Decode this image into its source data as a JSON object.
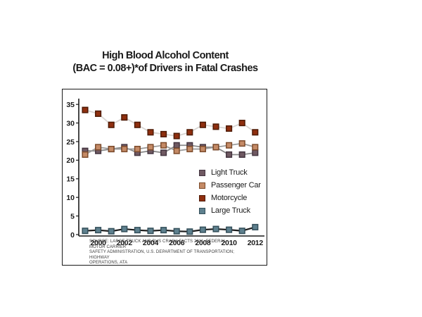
{
  "title": {
    "line1": "High Blood Alcohol Content",
    "line2": "(BAC = 0.08+)*of Drivers in Fatal Crashes"
  },
  "source": {
    "line1": "SOURCE: LARGE TRUCK AND BUS CRASH FACTS 2011, FEDERAL MOTOR CARRIER",
    "line2": "SAFETY ADMINISTRATION, U.S. DEPARTMENT OF TRANSPORTATION; HIGHWAY",
    "line3": "OPERATIONS, ATA"
  },
  "legend": {
    "items": [
      {
        "label": "Light Truck"
      },
      {
        "label": "Passenger Car"
      },
      {
        "label": "Motorcycle"
      },
      {
        "label": "Large Truck"
      }
    ]
  },
  "chart_data": {
    "type": "line",
    "title": "High Blood Alcohol Content (BAC = 0.08+)*of Drivers in Fatal Crashes",
    "x": [
      1999,
      2000,
      2001,
      2002,
      2003,
      2004,
      2005,
      2006,
      2007,
      2008,
      2009,
      2010,
      2011,
      2012
    ],
    "x_tick_labels": [
      "2000",
      "2002",
      "2004",
      "2006",
      "2008",
      "2010",
      "2012"
    ],
    "y_ticks": [
      0,
      5,
      10,
      15,
      20,
      25,
      30,
      35
    ],
    "ylim": [
      0,
      35
    ],
    "grid": false,
    "legend_position": "inside-right",
    "series": [
      {
        "name": "Light Truck",
        "marker_color": "#6f5962",
        "marker_border": "#443540",
        "line_color": "#8a8a8a",
        "line_width": 1.8,
        "values": [
          22.5,
          22.5,
          23.0,
          23.5,
          22.0,
          22.5,
          22.0,
          24.0,
          24.0,
          23.5,
          23.5,
          21.5,
          21.5,
          22.0
        ]
      },
      {
        "name": "Passenger Car",
        "marker_color": "#c48a66",
        "marker_border": "#7c4b2b",
        "line_color": "#9c9c9c",
        "line_width": 1.8,
        "values": [
          21.5,
          23.5,
          23.0,
          23.0,
          23.0,
          23.5,
          24.0,
          22.5,
          23.0,
          23.0,
          23.5,
          24.0,
          24.5,
          23.5
        ]
      },
      {
        "name": "Motorcycle",
        "marker_color": "#8f2f0f",
        "marker_border": "#4e1a05",
        "line_color": "#d8d5d2",
        "line_width": 1.8,
        "values": [
          33.5,
          32.5,
          29.5,
          31.5,
          29.5,
          27.5,
          27.0,
          26.5,
          27.5,
          29.5,
          29.0,
          28.5,
          30.0,
          27.5
        ]
      },
      {
        "name": "Large Truck",
        "marker_color": "#5e808e",
        "marker_border": "#344f5a",
        "line_color": "#1d1d1d",
        "line_width": 2.2,
        "values": [
          1.0,
          1.2,
          0.9,
          1.5,
          1.2,
          1.0,
          1.2,
          0.9,
          0.8,
          1.3,
          1.5,
          1.3,
          1.0,
          2.0
        ]
      }
    ]
  }
}
